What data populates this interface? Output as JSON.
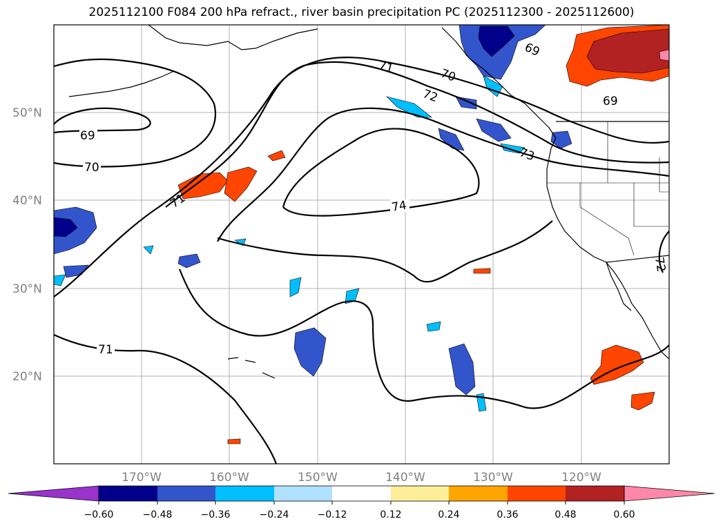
{
  "title": "2025112100 F084 200 hPa refract., river basin precipitation PC (2025112300 - 2025112600)",
  "map": {
    "projection": "PlateCarree",
    "lon_range": [
      -180,
      -110
    ],
    "lat_range": [
      10,
      60
    ],
    "lat_ticks": [
      "50°N",
      "40°N",
      "30°N",
      "20°N"
    ],
    "lon_ticks": [
      "170°W",
      "160°W",
      "150°W",
      "140°W",
      "130°W",
      "120°W"
    ],
    "grid": true,
    "tick_label_color": "#808080"
  },
  "contours": {
    "variable": "200 hPa refractivity",
    "labels": [
      "69",
      "70",
      "71",
      "71",
      "71",
      "72",
      "73",
      "74",
      "70",
      "69",
      "69",
      "72"
    ]
  },
  "colorbar": {
    "ticks": [
      "−0.60",
      "−0.48",
      "−0.36",
      "−0.24",
      "−0.12",
      "0.12",
      "0.24",
      "0.36",
      "0.48",
      "0.60"
    ],
    "colors": [
      "#9933cc",
      "#00008b",
      "#3355cc",
      "#00bfff",
      "#b0e2ff",
      "#ffffff",
      "#ffee99",
      "#ffa500",
      "#ff4500",
      "#b22222",
      "#ff88aa"
    ]
  }
}
